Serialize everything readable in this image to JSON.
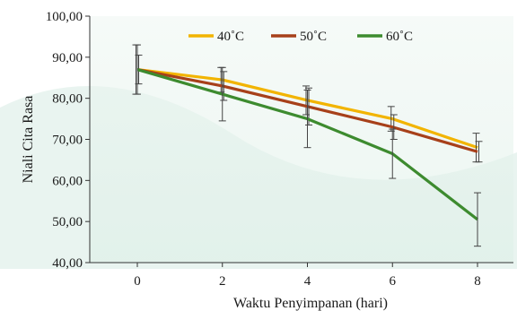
{
  "chart_data": {
    "type": "line",
    "x": [
      0,
      2,
      4,
      6,
      8
    ],
    "xticks": [
      "0",
      "2",
      "4",
      "6",
      "8"
    ],
    "yticks": [
      "40,00",
      "50,00",
      "60,00",
      "70,00",
      "80,00",
      "90,00",
      "100,00"
    ],
    "ylim": [
      40,
      100
    ],
    "xlabel": "Waktu Penyimpanan (hari)",
    "ylabel": "Niali Cita Rasa",
    "legend_position": "top",
    "grid": false,
    "series": [
      {
        "name": "40˚C",
        "color": "#f2b400",
        "values": [
          87.0,
          84.5,
          79.5,
          75.0,
          68.0
        ],
        "error": [
          6.0,
          3.0,
          3.5,
          3.0,
          3.5
        ]
      },
      {
        "name": "50˚C",
        "color": "#a7401a",
        "values": [
          87.0,
          83.0,
          78.0,
          73.0,
          67.0
        ],
        "error": [
          3.5,
          3.5,
          4.5,
          3.0,
          2.5
        ]
      },
      {
        "name": "60˚C",
        "color": "#3d8b2f",
        "values": [
          87.0,
          81.0,
          75.0,
          66.5,
          50.5
        ],
        "error": [
          6.0,
          6.5,
          7.0,
          6.0,
          6.5
        ]
      }
    ]
  }
}
